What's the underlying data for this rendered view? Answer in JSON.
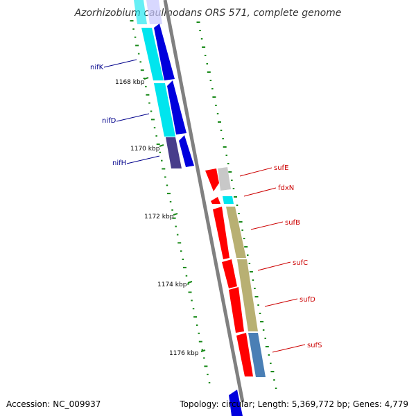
{
  "title": "Azorhizobium caulinodans ORS 571, complete genome",
  "footer": {
    "accession": "Accession: NC_009937",
    "topology": "Topology: circular; Length: 5,369,772 bp; Genes: 4,779"
  },
  "colors": {
    "backbone": "#808080",
    "gc_dots": "#1a8a1a",
    "blue_labels": "#00008b",
    "red_labels": "#cc0000",
    "sufE": "#c8c8c8",
    "fdxN": "#00e5ee",
    "sufB": "#b8b073",
    "sufC": "#b8b073",
    "sufD": "#b8b073",
    "sufS": "#4a7fb5",
    "nif_cyan": "#00e5ee",
    "nif_blue": "#0000dd",
    "nifH": "#483d8b",
    "cds_red": "#ff0000"
  },
  "ticks": [
    "1168 kbp",
    "1170 kbp",
    "1172 kbp",
    "1174 kbp",
    "1176 kbp"
  ],
  "genes_left": [
    {
      "name": "nifK",
      "color": "blue_labels"
    },
    {
      "name": "nifD",
      "color": "blue_labels"
    },
    {
      "name": "nifH",
      "color": "blue_labels"
    }
  ],
  "genes_right": [
    {
      "name": "sufE",
      "color": "red_labels"
    },
    {
      "name": "fdxN",
      "color": "red_labels"
    },
    {
      "name": "sufB",
      "color": "red_labels"
    },
    {
      "name": "sufC",
      "color": "red_labels"
    },
    {
      "name": "sufD",
      "color": "red_labels"
    },
    {
      "name": "sufS",
      "color": "red_labels"
    }
  ]
}
